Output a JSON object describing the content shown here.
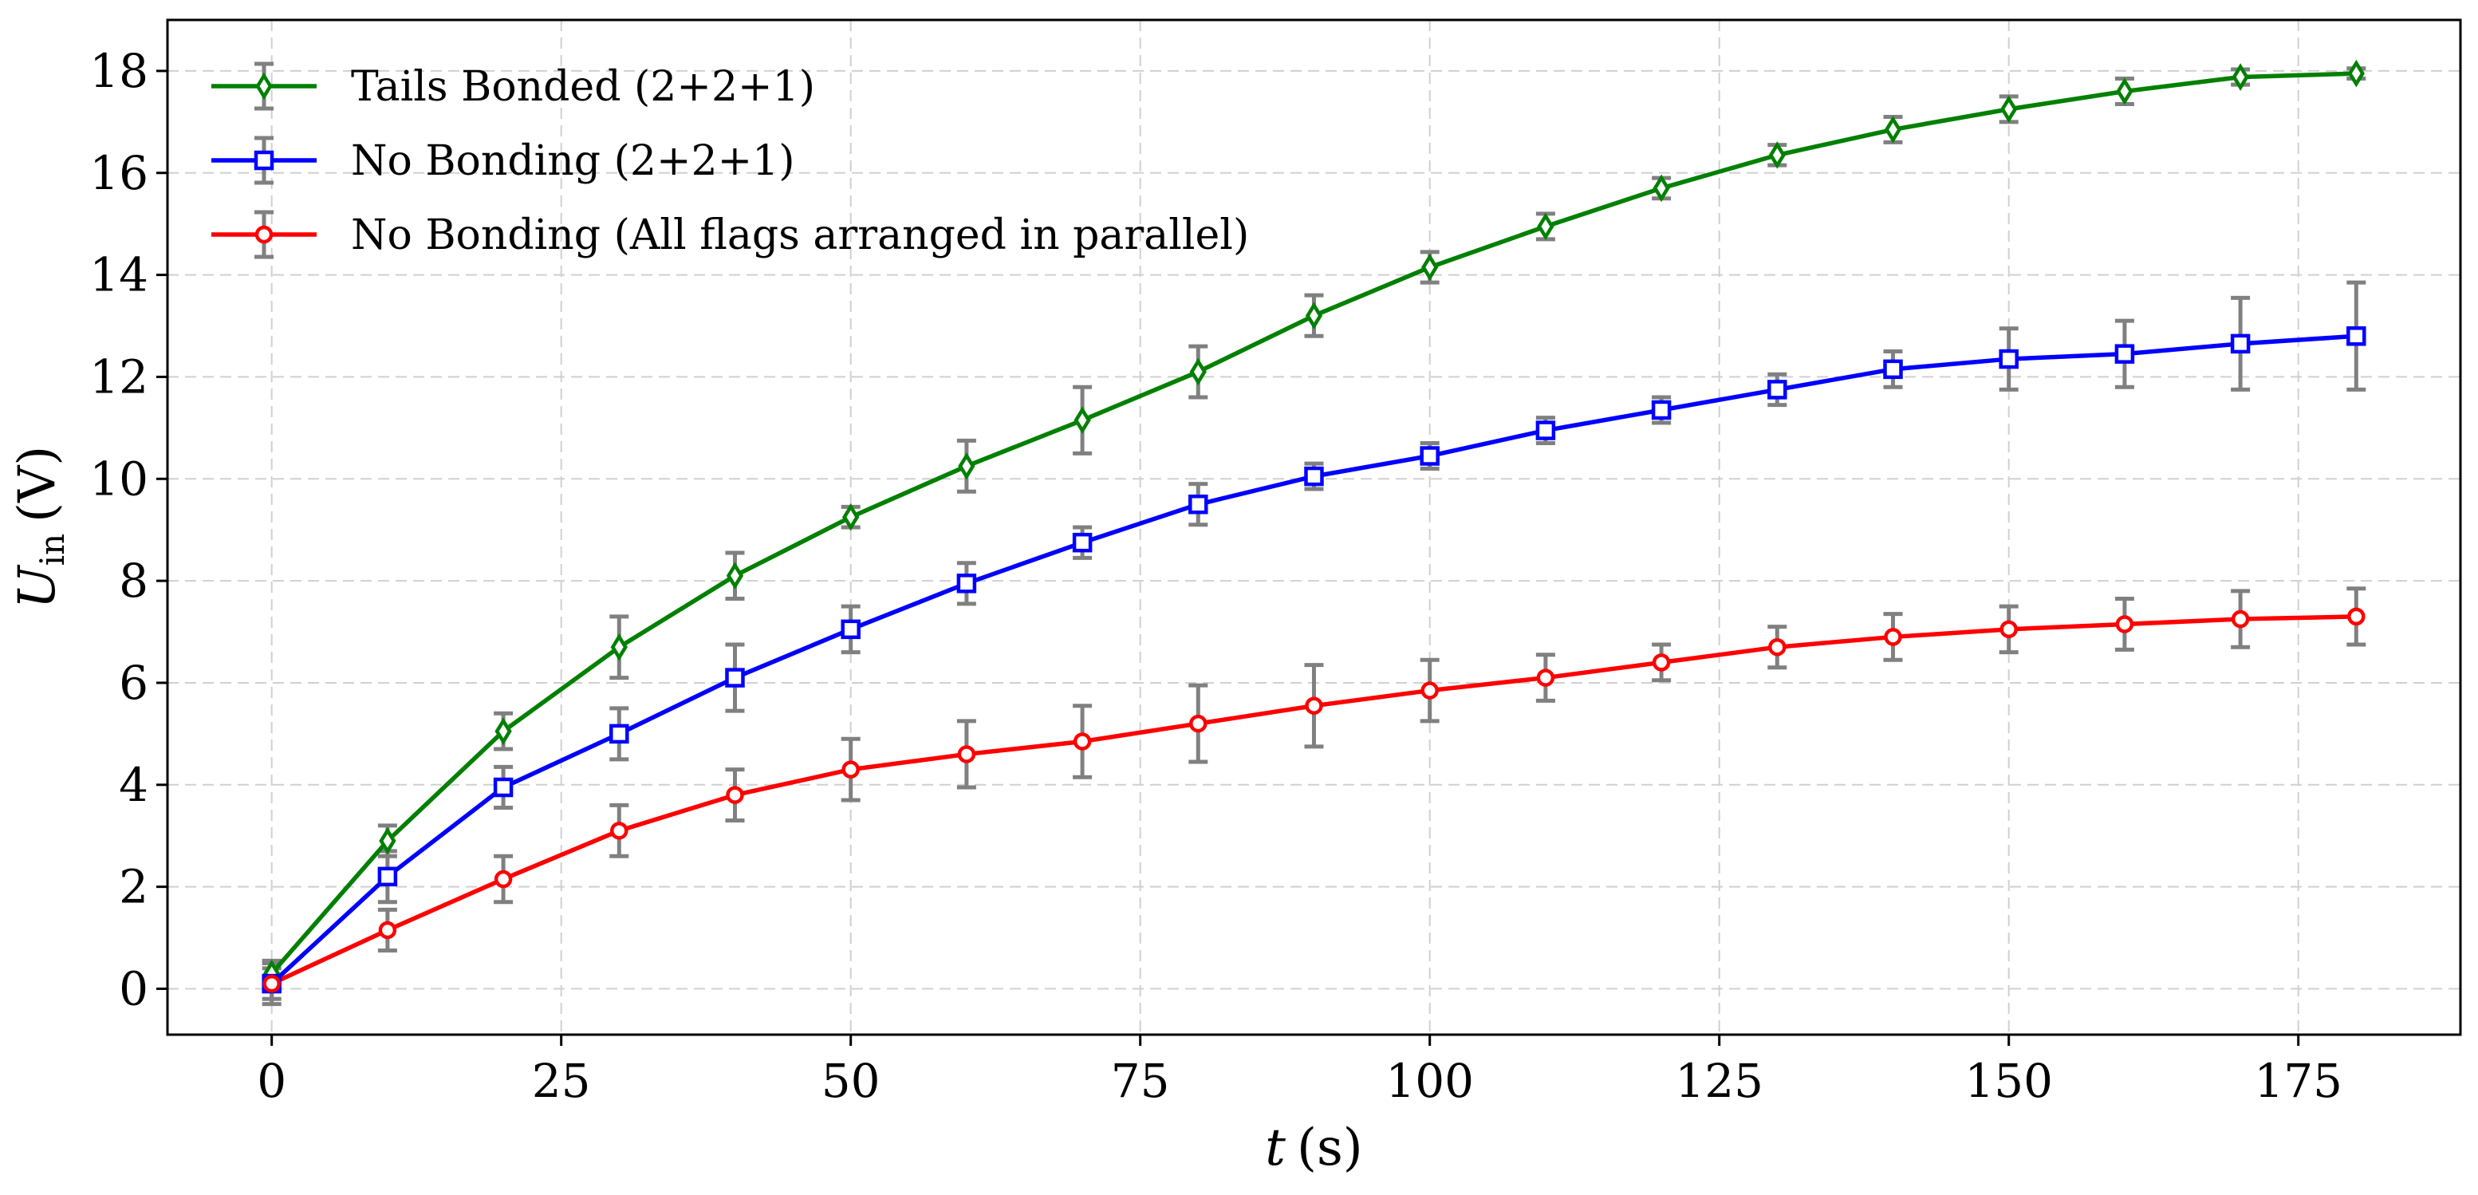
{
  "chart_data": {
    "type": "line",
    "xlabel": "t",
    "xlabel_unit": "(s)",
    "ylabel": "U",
    "ylabel_sub": "in",
    "ylabel_unit": "(V)",
    "xlim": [
      -9,
      189
    ],
    "ylim": [
      -0.9,
      19.0
    ],
    "xticks": [
      0,
      25,
      50,
      75,
      100,
      125,
      150,
      175
    ],
    "yticks": [
      0,
      2,
      4,
      6,
      8,
      10,
      12,
      14,
      16,
      18
    ],
    "grid": true,
    "legend_position": "top-left",
    "x": [
      0,
      10,
      20,
      30,
      40,
      50,
      60,
      70,
      80,
      90,
      100,
      110,
      120,
      130,
      140,
      150,
      160,
      170,
      180
    ],
    "series": [
      {
        "name": "Tails Bonded (2+2+1)",
        "color": "#008000",
        "marker": "diamond",
        "values": [
          0.3,
          2.9,
          5.05,
          6.7,
          8.1,
          9.25,
          10.25,
          11.15,
          12.1,
          13.2,
          14.15,
          14.95,
          15.7,
          16.35,
          16.85,
          17.25,
          17.6,
          17.88,
          17.95
        ],
        "errors": [
          0.25,
          0.3,
          0.35,
          0.6,
          0.45,
          0.2,
          0.5,
          0.65,
          0.5,
          0.4,
          0.3,
          0.25,
          0.2,
          0.2,
          0.25,
          0.25,
          0.25,
          0.15,
          0.1
        ]
      },
      {
        "name": "No Bonding (2+2+1)",
        "color": "#0000ff",
        "marker": "square",
        "values": [
          0.1,
          2.2,
          3.95,
          5.0,
          6.1,
          7.05,
          7.95,
          8.75,
          9.5,
          10.05,
          10.45,
          10.95,
          11.35,
          11.75,
          12.15,
          12.35,
          12.45,
          12.65,
          12.8
        ],
        "errors": [
          0.4,
          0.5,
          0.4,
          0.5,
          0.65,
          0.45,
          0.4,
          0.3,
          0.4,
          0.25,
          0.25,
          0.25,
          0.25,
          0.3,
          0.35,
          0.6,
          0.65,
          0.9,
          1.05
        ]
      },
      {
        "name": "No Bonding (All flags arranged in parallel)",
        "color": "#ff0000",
        "marker": "circle",
        "values": [
          0.1,
          1.15,
          2.15,
          3.1,
          3.8,
          4.3,
          4.6,
          4.85,
          5.2,
          5.55,
          5.85,
          6.1,
          6.4,
          6.7,
          6.9,
          7.05,
          7.15,
          7.25,
          7.3
        ],
        "errors": [
          0.3,
          0.4,
          0.45,
          0.5,
          0.5,
          0.6,
          0.65,
          0.7,
          0.75,
          0.8,
          0.6,
          0.45,
          0.35,
          0.4,
          0.45,
          0.45,
          0.5,
          0.55,
          0.55
        ]
      }
    ]
  }
}
